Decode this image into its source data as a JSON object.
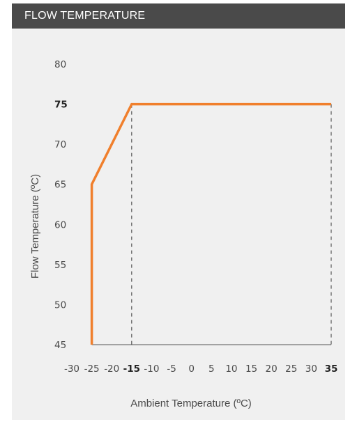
{
  "header": {
    "title": "FLOW TEMPERATURE"
  },
  "colors": {
    "header_bg": "#4a4a4a",
    "panel_bg": "#f0f0f0",
    "line": "#f07f2c",
    "axis": "#555555"
  },
  "chart_data": {
    "type": "line",
    "title": "",
    "xlabel": "Ambient Temperature (ºC)",
    "ylabel": "Flow Temperature (ºC)",
    "xlim": [
      -30,
      35
    ],
    "ylim": [
      45,
      80
    ],
    "x_ticks": [
      "-30",
      "-25",
      "-20",
      "-15",
      "-10",
      "-5",
      "0",
      "5",
      "10",
      "15",
      "20",
      "25",
      "30",
      "35"
    ],
    "x_ticks_bold": [
      "-15",
      "35"
    ],
    "y_ticks": [
      "45",
      "50",
      "55",
      "60",
      "65",
      "70",
      "75",
      "80"
    ],
    "y_ticks_bold": [
      "75"
    ],
    "series": [
      {
        "x": [
          -25,
          -25,
          -15,
          35
        ],
        "y": [
          45,
          65,
          75,
          75
        ]
      }
    ],
    "reference_lines": [
      {
        "x": -15
      },
      {
        "x": 35
      }
    ],
    "grid": false
  }
}
